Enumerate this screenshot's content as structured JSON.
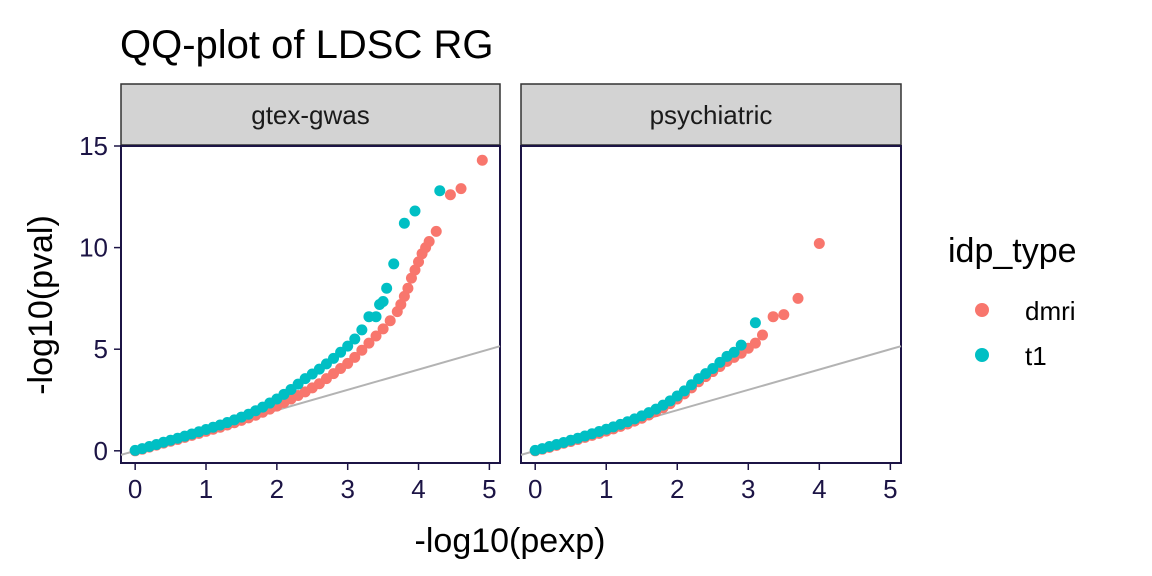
{
  "chart_data": {
    "type": "scatter",
    "title": "QQ-plot of LDSC RG",
    "xlabel": "-log10(pexp)",
    "ylabel": "-log10(pval)",
    "xlim": [
      -0.2,
      5.15
    ],
    "ylim": [
      -0.6,
      15.0
    ],
    "x_ticks": [
      0,
      1,
      2,
      3,
      4,
      5
    ],
    "y_ticks": [
      0,
      5,
      10,
      15
    ],
    "reference_line": "y = x",
    "legend": {
      "title": "idp_type",
      "position": "right",
      "entries": [
        "dmri",
        "t1"
      ]
    },
    "colors": {
      "dmri": "#f8766d",
      "t1": "#00bfc4",
      "reference": "#b3b3b3",
      "strip": "#d3d3d3",
      "axis_text": "#1c1445"
    },
    "facets": [
      {
        "label": "gtex-gwas",
        "series": [
          {
            "name": "dmri",
            "points": [
              [
                0.0,
                0.0
              ],
              [
                0.1,
                0.08
              ],
              [
                0.2,
                0.18
              ],
              [
                0.3,
                0.28
              ],
              [
                0.4,
                0.38
              ],
              [
                0.5,
                0.47
              ],
              [
                0.6,
                0.56
              ],
              [
                0.7,
                0.66
              ],
              [
                0.8,
                0.76
              ],
              [
                0.9,
                0.86
              ],
              [
                1.0,
                0.96
              ],
              [
                1.1,
                1.06
              ],
              [
                1.2,
                1.16
              ],
              [
                1.3,
                1.27
              ],
              [
                1.4,
                1.38
              ],
              [
                1.5,
                1.5
              ],
              [
                1.6,
                1.62
              ],
              [
                1.7,
                1.75
              ],
              [
                1.8,
                1.9
              ],
              [
                1.9,
                2.05
              ],
              [
                2.0,
                2.2
              ],
              [
                2.1,
                2.38
              ],
              [
                2.2,
                2.55
              ],
              [
                2.3,
                2.72
              ],
              [
                2.4,
                2.9
              ],
              [
                2.5,
                3.1
              ],
              [
                2.6,
                3.3
              ],
              [
                2.7,
                3.55
              ],
              [
                2.8,
                3.8
              ],
              [
                2.9,
                4.05
              ],
              [
                3.0,
                4.3
              ],
              [
                3.1,
                4.6
              ],
              [
                3.2,
                4.95
              ],
              [
                3.3,
                5.3
              ],
              [
                3.4,
                5.65
              ],
              [
                3.5,
                6.0
              ],
              [
                3.6,
                6.4
              ],
              [
                3.7,
                6.85
              ],
              [
                3.75,
                7.2
              ],
              [
                3.8,
                7.6
              ],
              [
                3.85,
                8.0
              ],
              [
                3.9,
                8.5
              ],
              [
                3.95,
                8.9
              ],
              [
                4.0,
                9.3
              ],
              [
                4.05,
                9.7
              ],
              [
                4.1,
                10.0
              ],
              [
                4.15,
                10.3
              ],
              [
                4.25,
                10.8
              ],
              [
                4.45,
                12.6
              ],
              [
                4.6,
                12.9
              ],
              [
                4.9,
                14.3
              ]
            ]
          },
          {
            "name": "t1",
            "points": [
              [
                0.0,
                0.02
              ],
              [
                0.1,
                0.11
              ],
              [
                0.2,
                0.21
              ],
              [
                0.3,
                0.31
              ],
              [
                0.4,
                0.42
              ],
              [
                0.5,
                0.52
              ],
              [
                0.6,
                0.62
              ],
              [
                0.7,
                0.72
              ],
              [
                0.8,
                0.83
              ],
              [
                0.9,
                0.94
              ],
              [
                1.0,
                1.05
              ],
              [
                1.1,
                1.16
              ],
              [
                1.2,
                1.27
              ],
              [
                1.3,
                1.39
              ],
              [
                1.4,
                1.52
              ],
              [
                1.5,
                1.66
              ],
              [
                1.6,
                1.8
              ],
              [
                1.7,
                1.97
              ],
              [
                1.8,
                2.15
              ],
              [
                1.9,
                2.35
              ],
              [
                2.0,
                2.55
              ],
              [
                2.1,
                2.78
              ],
              [
                2.2,
                3.02
              ],
              [
                2.3,
                3.28
              ],
              [
                2.4,
                3.55
              ],
              [
                2.5,
                3.78
              ],
              [
                2.6,
                4.02
              ],
              [
                2.7,
                4.28
              ],
              [
                2.8,
                4.55
              ],
              [
                2.9,
                4.85
              ],
              [
                3.0,
                5.15
              ],
              [
                3.1,
                5.5
              ],
              [
                3.2,
                5.95
              ],
              [
                3.3,
                6.6
              ],
              [
                3.4,
                6.6
              ],
              [
                3.45,
                7.2
              ],
              [
                3.5,
                7.35
              ],
              [
                3.55,
                8.0
              ],
              [
                3.65,
                9.2
              ],
              [
                3.8,
                11.2
              ],
              [
                3.95,
                11.8
              ],
              [
                4.3,
                12.8
              ]
            ]
          }
        ]
      },
      {
        "label": "psychiatric",
        "series": [
          {
            "name": "dmri",
            "points": [
              [
                0.0,
                0.0
              ],
              [
                0.1,
                0.08
              ],
              [
                0.2,
                0.17
              ],
              [
                0.3,
                0.27
              ],
              [
                0.4,
                0.37
              ],
              [
                0.5,
                0.46
              ],
              [
                0.6,
                0.56
              ],
              [
                0.7,
                0.66
              ],
              [
                0.8,
                0.76
              ],
              [
                0.9,
                0.86
              ],
              [
                1.0,
                0.97
              ],
              [
                1.1,
                1.08
              ],
              [
                1.2,
                1.2
              ],
              [
                1.3,
                1.32
              ],
              [
                1.4,
                1.46
              ],
              [
                1.5,
                1.6
              ],
              [
                1.6,
                1.76
              ],
              [
                1.7,
                1.93
              ],
              [
                1.8,
                2.12
              ],
              [
                1.9,
                2.32
              ],
              [
                2.0,
                2.55
              ],
              [
                2.1,
                2.8
              ],
              [
                2.2,
                3.1
              ],
              [
                2.3,
                3.4
              ],
              [
                2.4,
                3.65
              ],
              [
                2.5,
                3.9
              ],
              [
                2.6,
                4.15
              ],
              [
                2.7,
                4.4
              ],
              [
                2.8,
                4.6
              ],
              [
                2.9,
                4.8
              ],
              [
                3.0,
                5.05
              ],
              [
                3.1,
                5.3
              ],
              [
                3.2,
                5.7
              ],
              [
                3.35,
                6.6
              ],
              [
                3.5,
                6.7
              ],
              [
                3.7,
                7.5
              ],
              [
                4.0,
                10.2
              ]
            ]
          },
          {
            "name": "t1",
            "points": [
              [
                0.0,
                0.02
              ],
              [
                0.1,
                0.11
              ],
              [
                0.2,
                0.21
              ],
              [
                0.3,
                0.31
              ],
              [
                0.4,
                0.41
              ],
              [
                0.5,
                0.52
              ],
              [
                0.6,
                0.62
              ],
              [
                0.7,
                0.73
              ],
              [
                0.8,
                0.84
              ],
              [
                0.9,
                0.95
              ],
              [
                1.0,
                1.06
              ],
              [
                1.1,
                1.18
              ],
              [
                1.2,
                1.3
              ],
              [
                1.3,
                1.43
              ],
              [
                1.4,
                1.57
              ],
              [
                1.5,
                1.72
              ],
              [
                1.6,
                1.88
              ],
              [
                1.7,
                2.05
              ],
              [
                1.8,
                2.25
              ],
              [
                1.9,
                2.46
              ],
              [
                2.0,
                2.7
              ],
              [
                2.1,
                2.95
              ],
              [
                2.2,
                3.25
              ],
              [
                2.3,
                3.55
              ],
              [
                2.4,
                3.8
              ],
              [
                2.5,
                4.05
              ],
              [
                2.6,
                4.35
              ],
              [
                2.7,
                4.65
              ],
              [
                2.8,
                4.85
              ],
              [
                2.9,
                5.2
              ],
              [
                3.1,
                6.3
              ]
            ]
          }
        ]
      }
    ]
  }
}
